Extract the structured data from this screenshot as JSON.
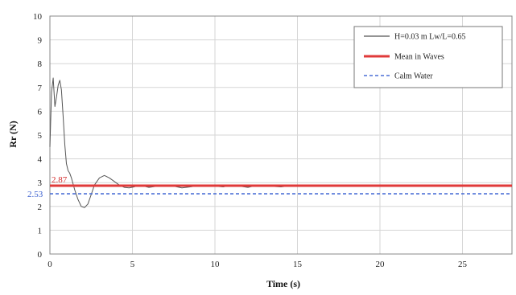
{
  "chart_data": {
    "type": "line",
    "xlabel": "Time (s)",
    "ylabel": "Rr (N)",
    "xlim": [
      0,
      28
    ],
    "ylim": [
      0,
      10
    ],
    "x_ticks": [
      0,
      5,
      10,
      15,
      20,
      25
    ],
    "y_ticks": [
      0,
      1,
      2,
      3,
      4,
      5,
      6,
      7,
      8,
      9,
      10
    ],
    "grid": true,
    "legend_position": "top-right",
    "series": [
      {
        "name": "H=0.03 m Lw/L=0.65",
        "color": "#555555",
        "style": "solid",
        "x": [
          0,
          0.1,
          0.2,
          0.3,
          0.4,
          0.5,
          0.6,
          0.7,
          0.8,
          0.9,
          1.0,
          1.1,
          1.2,
          1.3,
          1.5,
          1.7,
          1.9,
          2.1,
          2.3,
          2.5,
          2.7,
          3.0,
          3.3,
          3.6,
          3.9,
          4.2,
          4.5,
          4.8,
          5.1,
          5.4,
          5.7,
          6.0,
          6.5,
          7.0,
          7.5,
          8.0,
          8.5,
          9.0,
          9.5,
          10.0,
          10.5,
          11.0,
          11.5,
          12.0,
          12.5,
          13.0,
          13.5,
          14.0,
          14.5,
          15.0,
          15.5,
          16.0,
          17.0,
          18.0,
          19.0,
          20.0,
          21.0,
          22.0,
          23.0,
          24.0,
          25.0,
          26.0,
          27.0,
          28.0
        ],
        "y": [
          4.5,
          6.8,
          7.4,
          6.2,
          6.6,
          7.1,
          7.3,
          6.9,
          5.8,
          4.6,
          3.8,
          3.5,
          3.4,
          3.2,
          2.7,
          2.3,
          2.0,
          1.95,
          2.1,
          2.5,
          2.9,
          3.2,
          3.3,
          3.2,
          3.05,
          2.9,
          2.8,
          2.78,
          2.82,
          2.9,
          2.85,
          2.8,
          2.85,
          2.9,
          2.85,
          2.78,
          2.82,
          2.87,
          2.9,
          2.85,
          2.82,
          2.9,
          2.85,
          2.8,
          2.88,
          2.9,
          2.84,
          2.82,
          2.86,
          2.88,
          2.84,
          2.85,
          2.86,
          2.88,
          2.85,
          2.86,
          2.87,
          2.85,
          2.86,
          2.88,
          2.87,
          2.86,
          2.87,
          2.87
        ]
      },
      {
        "name": "Mean in Waves",
        "color": "#e03a3a",
        "style": "solid",
        "constant": 2.87
      },
      {
        "name": "Calm Water",
        "color": "#4a6fd6",
        "style": "dashed",
        "constant": 2.53
      }
    ],
    "annotations": [
      {
        "text": "2.87",
        "y": 2.87,
        "color": "#d42a2a"
      },
      {
        "text": "2.53",
        "y": 2.53,
        "color": "#3a5fcf"
      }
    ]
  }
}
